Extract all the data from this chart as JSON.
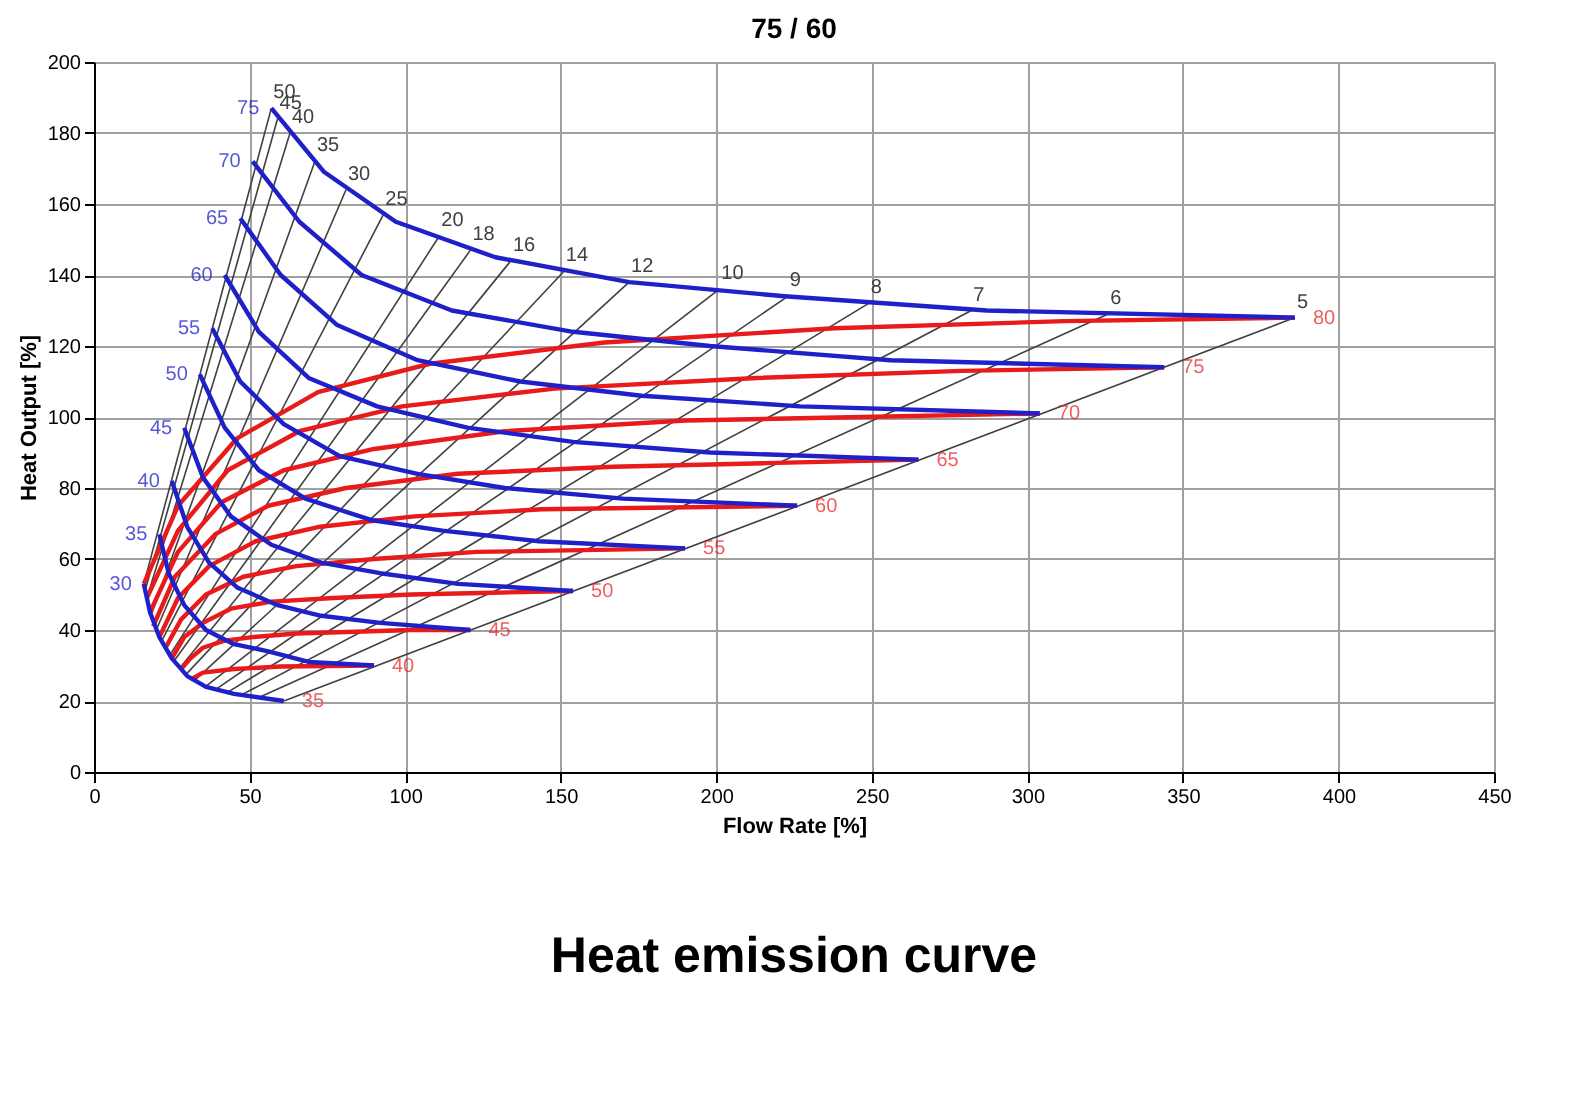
{
  "chart_data": {
    "type": "line",
    "title": "75 / 60",
    "xlabel": "Flow Rate [%]",
    "ylabel": "Heat Output [%]",
    "xlim": [
      0,
      450
    ],
    "xticks": [
      0,
      50,
      100,
      150,
      200,
      250,
      300,
      350,
      400,
      450
    ],
    "ylim": [
      0,
      200
    ],
    "yticks": [
      0,
      20,
      40,
      60,
      80,
      100,
      120,
      140,
      160,
      180,
      200
    ],
    "grid": true,
    "marker": "none",
    "line_style": "solid",
    "annotations": [
      {
        "text": "35",
        "x": 61,
        "y": 20
      },
      "Heat emission curve"
    ],
    "series": [
      {
        "name": "50",
        "color": "#404040",
        "x": [
          16,
          57
        ],
        "values": [
          53,
          187
        ]
      },
      {
        "name": "45",
        "color": "#404040",
        "x": [
          16.4,
          59
        ],
        "values": [
          51,
          184
        ]
      },
      {
        "name": "40",
        "color": "#404040",
        "x": [
          17,
          63
        ],
        "values": [
          49,
          180
        ]
      },
      {
        "name": "35",
        "color": "#404040",
        "x": [
          18.3,
          71
        ],
        "values": [
          44,
          172
        ]
      },
      {
        "name": "30",
        "color": "#404040",
        "x": [
          20,
          81
        ],
        "values": [
          40,
          164
        ]
      },
      {
        "name": "25",
        "color": "#404040",
        "x": [
          21.8,
          93
        ],
        "values": [
          37,
          157
        ]
      },
      {
        "name": "20",
        "color": "#404040",
        "x": [
          24.4,
          111
        ],
        "values": [
          33,
          151
        ]
      },
      {
        "name": "18",
        "color": "#404040",
        "x": [
          25.5,
          121
        ],
        "values": [
          31,
          147
        ]
      },
      {
        "name": "16",
        "color": "#404040",
        "x": [
          27.3,
          134
        ],
        "values": [
          29,
          144
        ]
      },
      {
        "name": "14",
        "color": "#404040",
        "x": [
          29.6,
          151
        ],
        "values": [
          27.5,
          141
        ]
      },
      {
        "name": "12",
        "color": "#404040",
        "x": [
          32.6,
          172
        ],
        "values": [
          26,
          138
        ]
      },
      {
        "name": "10",
        "color": "#404040",
        "x": [
          35.7,
          201
        ],
        "values": [
          24,
          136
        ]
      },
      {
        "name": "9",
        "color": "#404040",
        "x": [
          39.5,
          223
        ],
        "values": [
          23.5,
          134
        ]
      },
      {
        "name": "8",
        "color": "#404040",
        "x": [
          43,
          249
        ],
        "values": [
          22.5,
          132
        ]
      },
      {
        "name": "7",
        "color": "#404040",
        "x": [
          48,
          282
        ],
        "values": [
          22,
          130
        ]
      },
      {
        "name": "6",
        "color": "#404040",
        "x": [
          53,
          326
        ],
        "values": [
          21,
          129
        ]
      },
      {
        "name": "5",
        "color": "#404040",
        "x": [
          61,
          386
        ],
        "values": [
          20,
          128
        ]
      },
      {
        "name": "80",
        "color": "#e81a1a",
        "x": [
          16,
          27,
          46,
          72,
          108,
          164,
          238,
          312,
          386
        ],
        "values": [
          53,
          75,
          94,
          107,
          115,
          121,
          125,
          127,
          128
        ]
      },
      {
        "name": "75",
        "color": "#e81a1a",
        "x": [
          17,
          27,
          43,
          66,
          99,
          148,
          213,
          279,
          344
        ],
        "values": [
          49,
          68,
          85,
          96,
          103,
          108,
          111,
          113,
          114
        ]
      },
      {
        "name": "70",
        "color": "#e81a1a",
        "x": [
          18,
          27,
          41,
          61,
          90,
          132,
          190,
          247,
          304
        ],
        "values": [
          45,
          62,
          76,
          85,
          91,
          96,
          99,
          100,
          101
        ]
      },
      {
        "name": "65",
        "color": "#e81a1a",
        "x": [
          19,
          26,
          39,
          56,
          81,
          117,
          167,
          216,
          265
        ],
        "values": [
          41,
          55,
          67,
          75,
          80,
          84,
          86,
          87,
          88
        ]
      },
      {
        "name": "60",
        "color": "#e81a1a",
        "x": [
          21,
          27,
          37,
          52,
          72,
          103,
          144,
          185,
          226
        ],
        "values": [
          38,
          49,
          58,
          65,
          69,
          72,
          74,
          74.5,
          75
        ]
      },
      {
        "name": "55",
        "color": "#e81a1a",
        "x": [
          23,
          28,
          36,
          48,
          65,
          90,
          123,
          157,
          190
        ],
        "values": [
          35,
          43,
          50,
          55,
          58,
          60,
          62,
          62.5,
          63
        ]
      },
      {
        "name": "50",
        "color": "#e81a1a",
        "x": [
          25,
          29,
          35,
          44,
          57,
          77,
          102,
          128,
          154
        ],
        "values": [
          32,
          38,
          42,
          46,
          48,
          49,
          50,
          50.5,
          51
        ]
      },
      {
        "name": "45",
        "color": "#e81a1a",
        "x": [
          28,
          31,
          35,
          42,
          51,
          65,
          84,
          102,
          121
        ],
        "values": [
          29,
          32,
          35,
          37,
          38,
          39,
          39.5,
          40,
          40
        ]
      },
      {
        "name": "40",
        "color": "#e81a1a",
        "x": [
          31,
          35,
          45,
          60,
          90
        ],
        "values": [
          26,
          28,
          29,
          29.7,
          30
        ]
      },
      {
        "name": "75",
        "color": "#2020c8",
        "x": [
          57,
          74,
          97,
          129,
          172,
          222,
          287,
          386
        ],
        "values": [
          187,
          169,
          155,
          145,
          138,
          134,
          130,
          128
        ]
      },
      {
        "name": "70",
        "color": "#2020c8",
        "x": [
          51,
          66,
          86,
          115,
          154,
          198,
          256,
          344
        ],
        "values": [
          172,
          155,
          140,
          130,
          124,
          120,
          116,
          114
        ]
      },
      {
        "name": "65",
        "color": "#2020c8",
        "x": [
          47,
          60,
          78,
          104,
          137,
          176,
          227,
          304
        ],
        "values": [
          156,
          140,
          126,
          116,
          110,
          106,
          103,
          101
        ]
      },
      {
        "name": "60",
        "color": "#2020c8",
        "x": [
          42,
          53,
          69,
          91,
          120,
          154,
          198,
          265
        ],
        "values": [
          140,
          124,
          111,
          103,
          97,
          93,
          90,
          88
        ]
      },
      {
        "name": "55",
        "color": "#2020c8",
        "x": [
          38,
          47,
          61,
          79,
          104,
          132,
          170,
          226
        ],
        "values": [
          125,
          110,
          98,
          89,
          84,
          80,
          77,
          75
        ]
      },
      {
        "name": "50",
        "color": "#2020c8",
        "x": [
          34,
          42,
          53,
          68,
          89,
          112,
          143,
          190
        ],
        "values": [
          112,
          97,
          85,
          77,
          71,
          68,
          65,
          63
        ]
      },
      {
        "name": "45",
        "color": "#2020c8",
        "x": [
          29,
          35,
          44,
          57,
          73,
          92,
          117,
          154
        ],
        "values": [
          97,
          83,
          72,
          64,
          59,
          56,
          53,
          51
        ]
      },
      {
        "name": "40",
        "color": "#2020c8",
        "x": [
          25,
          30,
          37,
          46,
          59,
          73,
          92,
          121
        ],
        "values": [
          82,
          69,
          59,
          52,
          47,
          44,
          42,
          40
        ]
      },
      {
        "name": "35",
        "color": "#2020c8",
        "x": [
          21,
          24,
          29,
          36,
          45,
          56,
          69,
          90
        ],
        "values": [
          67,
          56,
          47,
          40,
          36,
          34,
          31,
          30
        ]
      },
      {
        "name": "30",
        "color": "#2020c8",
        "x": [
          16,
          18,
          21,
          25,
          30,
          36,
          45,
          61
        ],
        "values": [
          53,
          45,
          38,
          32,
          27,
          24,
          22,
          20
        ]
      }
    ]
  }
}
